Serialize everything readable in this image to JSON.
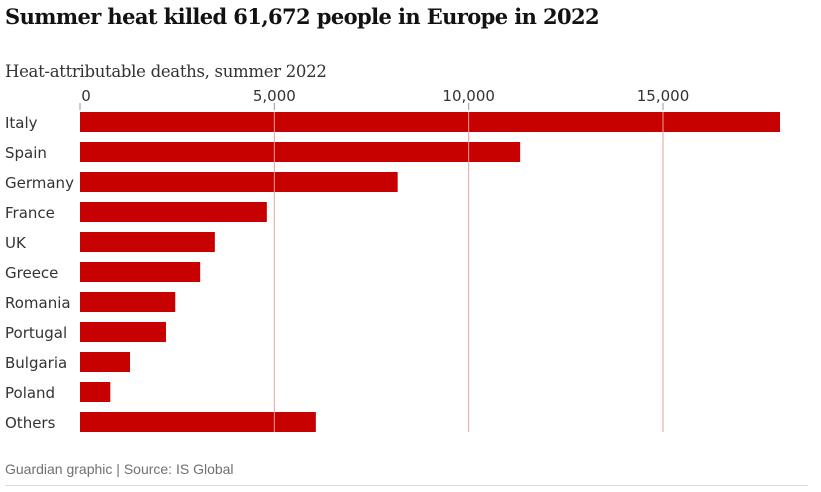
{
  "chart_data": {
    "type": "bar",
    "orientation": "horizontal",
    "title": "Summer heat killed 61,672 people in Europe in 2022",
    "subtitle": "Heat-attributable deaths, summer 2022",
    "xlabel": "",
    "ylabel": "",
    "categories": [
      "Italy",
      "Spain",
      "Germany",
      "France",
      "UK",
      "Greece",
      "Romania",
      "Portugal",
      "Bulgaria",
      "Poland",
      "Others"
    ],
    "values": [
      18010,
      11324,
      8173,
      4807,
      3469,
      3092,
      2451,
      2212,
      1287,
      779,
      6068
    ],
    "xlim": [
      0,
      18010
    ],
    "ticks": [
      0,
      5000,
      10000,
      15000
    ],
    "tick_labels": [
      "0",
      "5,000",
      "10,000",
      "15,000"
    ],
    "grid": true,
    "bar_color": "#c70000",
    "gridline_color": "#e8a0a0",
    "tick_color": "#999999"
  },
  "footer": {
    "source": "Guardian graphic | Source: IS Global"
  }
}
